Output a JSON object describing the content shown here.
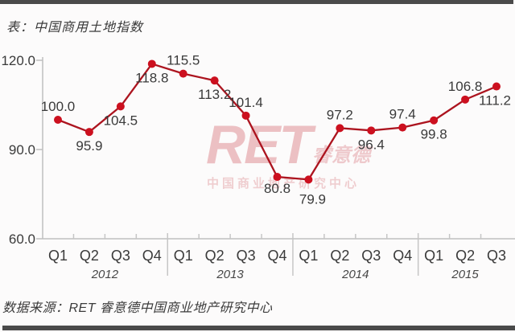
{
  "page": {
    "title": "表：中国商用土地指数",
    "source": "数据来源：RET 睿意德中国商业地产研究中心"
  },
  "watermark": {
    "logo": "RET",
    "logo_cn": "睿意德",
    "subtitle": "中国商业地产研究中心"
  },
  "chart_data": {
    "type": "line",
    "title": "表：中国商用土地指数",
    "categories": [
      "Q1",
      "Q2",
      "Q3",
      "Q4",
      "Q1",
      "Q2",
      "Q3",
      "Q4",
      "Q1",
      "Q2",
      "Q3",
      "Q4",
      "Q1",
      "Q2",
      "Q3"
    ],
    "year_groups": [
      {
        "label": "2012",
        "count": 4
      },
      {
        "label": "2013",
        "count": 4
      },
      {
        "label": "2014",
        "count": 4
      },
      {
        "label": "2015",
        "count": 3
      }
    ],
    "values": [
      100.0,
      95.9,
      104.5,
      118.8,
      115.5,
      113.2,
      101.4,
      80.8,
      79.9,
      97.2,
      96.4,
      97.4,
      99.8,
      106.8,
      111.2
    ],
    "value_label_positions": [
      "above",
      "below",
      "below",
      "below",
      "above",
      "below",
      "above",
      "below",
      "below",
      "above",
      "below",
      "above",
      "below",
      "above",
      "below"
    ],
    "value_label_offsets": {
      "7": [
        0,
        -3
      ],
      "8": [
        5,
        7
      ],
      "14": [
        -2,
        0
      ]
    },
    "ylim": [
      60.0,
      120.0
    ],
    "yticks": [
      120,
      90,
      60
    ],
    "ytick_labels": [
      "120.0",
      "90.0",
      "60.0"
    ],
    "grid": false,
    "legend": false,
    "line_color": "#ac141f",
    "point_color": "#cc101f",
    "label_color": "#3a3a3a",
    "axis_color": "#bfbfbf",
    "separator_color": "#c6c6c6"
  }
}
